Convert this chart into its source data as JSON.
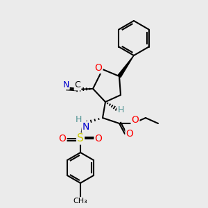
{
  "bg_color": "#ebebeb",
  "atom_colors": {
    "C": "#000000",
    "N": "#0000cc",
    "O": "#ff0000",
    "S": "#cccc00",
    "H": "#4a9090"
  }
}
